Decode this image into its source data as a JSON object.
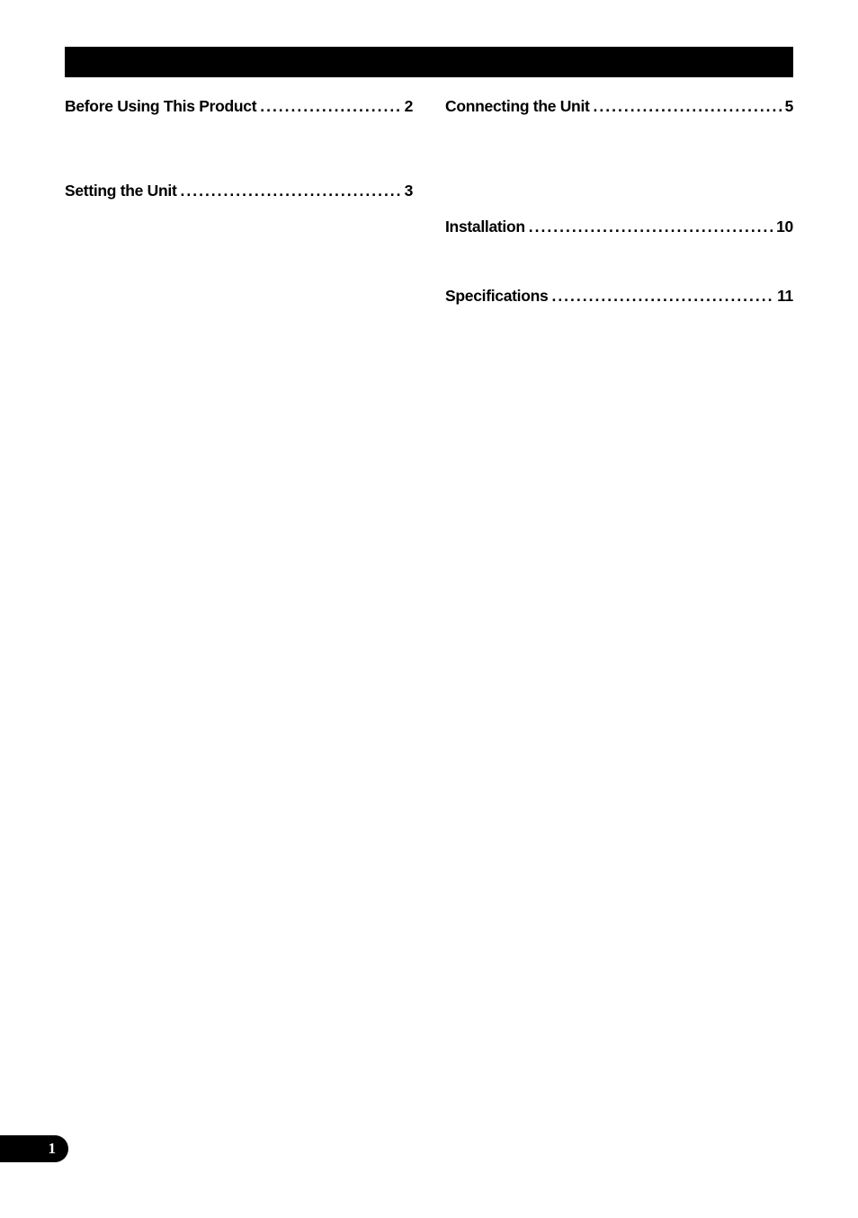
{
  "colors": {
    "bar_bg": "#000000",
    "page_bg": "#ffffff",
    "text": "#000000",
    "tab_bg": "#000000",
    "tab_text": "#ffffff"
  },
  "typography": {
    "toc_font_size_pt": 13,
    "toc_font_weight": 700,
    "page_num_font_size_pt": 13
  },
  "left_column": [
    {
      "title": "Before Using This Product",
      "page": "2"
    },
    {
      "title": "Setting the Unit",
      "page": "3"
    }
  ],
  "right_column": [
    {
      "title": "Connecting the Unit",
      "page": "5"
    },
    {
      "title": "Installation",
      "page": "10"
    },
    {
      "title": "Specifications",
      "page": "11"
    }
  ],
  "page_number": "1"
}
